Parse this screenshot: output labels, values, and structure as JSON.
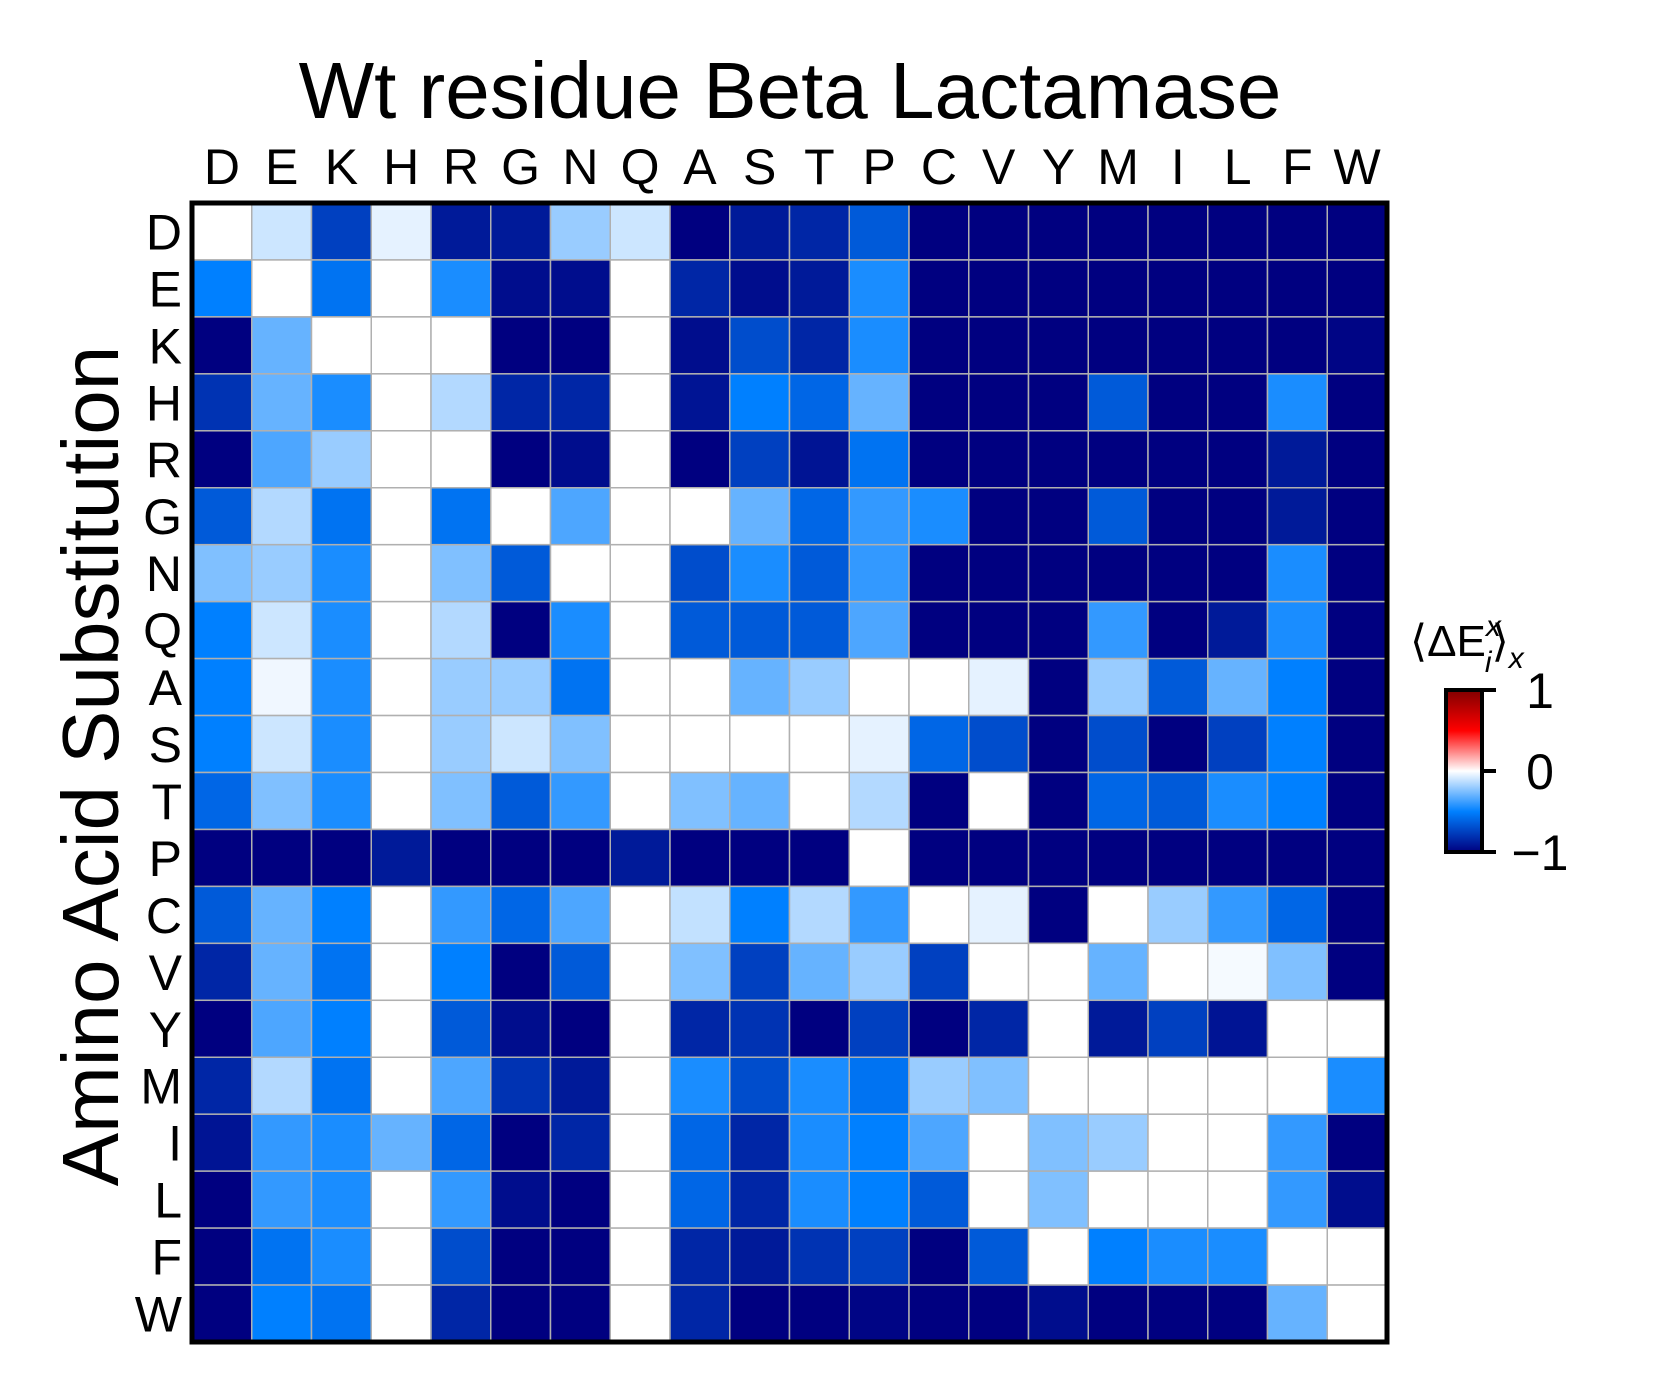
{
  "chart_data": {
    "type": "heatmap",
    "title": "Wt residue Beta Lactamase",
    "xlabel": "",
    "ylabel": "Amino Acid Substitution",
    "x_categories": [
      "D",
      "E",
      "K",
      "H",
      "R",
      "G",
      "N",
      "Q",
      "A",
      "S",
      "T",
      "P",
      "C",
      "V",
      "Y",
      "M",
      "I",
      "L",
      "F",
      "W"
    ],
    "y_categories": [
      "D",
      "E",
      "K",
      "H",
      "R",
      "G",
      "N",
      "Q",
      "A",
      "S",
      "T",
      "P",
      "C",
      "V",
      "Y",
      "M",
      "I",
      "L",
      "F",
      "W"
    ],
    "values": [
      [
        0,
        -0.1,
        -0.75,
        -0.05,
        -0.9,
        -0.9,
        -0.2,
        -0.1,
        -1.0,
        -0.9,
        -0.85,
        -0.65,
        -1,
        -1,
        -1,
        -1,
        -1,
        -1,
        -1,
        -1
      ],
      [
        -0.5,
        0,
        -0.55,
        0,
        -0.45,
        -0.95,
        -0.95,
        0,
        -0.85,
        -0.95,
        -0.9,
        -0.45,
        -1,
        -1,
        -1,
        -1,
        -1,
        -1,
        -1,
        -1
      ],
      [
        -1.0,
        -0.3,
        0,
        0,
        0,
        -1.0,
        -1.0,
        0,
        -0.95,
        -0.7,
        -0.85,
        -0.45,
        -1,
        -1,
        -1,
        -1,
        -1,
        -1,
        -1,
        -0.98
      ],
      [
        -0.8,
        -0.3,
        -0.45,
        0,
        -0.15,
        -0.85,
        -0.85,
        0,
        -0.92,
        -0.5,
        -0.6,
        -0.3,
        -1,
        -1,
        -1,
        -0.65,
        -1,
        -1,
        -0.45,
        -1
      ],
      [
        -1.0,
        -0.35,
        -0.2,
        0,
        0,
        -1.0,
        -0.95,
        0,
        -1.0,
        -0.75,
        -0.92,
        -0.55,
        -1,
        -1,
        -1,
        -1,
        -1,
        -1,
        -0.9,
        -1
      ],
      [
        -0.65,
        -0.15,
        -0.55,
        0,
        -0.55,
        0,
        -0.35,
        0,
        0,
        -0.3,
        -0.6,
        -0.4,
        -0.45,
        -1,
        -1,
        -0.65,
        -1,
        -1,
        -0.9,
        -1
      ],
      [
        -0.25,
        -0.2,
        -0.45,
        0,
        -0.25,
        -0.65,
        0,
        0,
        -0.7,
        -0.45,
        -0.65,
        -0.4,
        -1,
        -1,
        -1,
        -1,
        -1,
        -1,
        -0.45,
        -1
      ],
      [
        -0.5,
        -0.1,
        -0.45,
        0,
        -0.15,
        -1.0,
        -0.45,
        0,
        -0.65,
        -0.65,
        -0.65,
        -0.35,
        -1,
        -1,
        -1,
        -0.4,
        -1,
        -0.9,
        -0.45,
        -1
      ],
      [
        -0.5,
        -0.03,
        -0.45,
        0,
        -0.2,
        -0.2,
        -0.55,
        0,
        0,
        -0.3,
        -0.2,
        0,
        0,
        -0.05,
        -1,
        -0.2,
        -0.65,
        -0.3,
        -0.5,
        -1
      ],
      [
        -0.5,
        -0.1,
        -0.45,
        0,
        -0.2,
        -0.1,
        -0.25,
        0,
        0,
        0,
        0,
        -0.05,
        -0.6,
        -0.7,
        -1,
        -0.7,
        -1,
        -0.75,
        -0.5,
        -1
      ],
      [
        -0.6,
        -0.25,
        -0.45,
        0,
        -0.25,
        -0.65,
        -0.4,
        0,
        -0.25,
        -0.3,
        0,
        -0.15,
        -1.0,
        0,
        -1,
        -0.6,
        -0.65,
        -0.45,
        -0.5,
        -1
      ],
      [
        -1,
        -1,
        -1,
        -0.9,
        -1,
        -1,
        -1,
        -0.9,
        -1,
        -1,
        -1,
        0,
        -1,
        -1,
        -1,
        -1,
        -1,
        -1,
        -1,
        -1
      ],
      [
        -0.65,
        -0.3,
        -0.5,
        0,
        -0.4,
        -0.6,
        -0.35,
        0,
        -0.12,
        -0.5,
        -0.15,
        -0.4,
        0,
        -0.05,
        -1,
        0,
        -0.2,
        -0.4,
        -0.6,
        -1
      ],
      [
        -0.85,
        -0.3,
        -0.55,
        0,
        -0.5,
        -1.0,
        -0.65,
        0,
        -0.25,
        -0.75,
        -0.3,
        -0.2,
        -0.75,
        0,
        0,
        -0.3,
        0,
        -0.02,
        -0.25,
        -1
      ],
      [
        -1.0,
        -0.35,
        -0.5,
        0,
        -0.65,
        -0.95,
        -1.0,
        0,
        -0.85,
        -0.8,
        -1.0,
        -0.75,
        -1.0,
        -0.85,
        0,
        -0.9,
        -0.75,
        -0.92,
        0,
        0
      ],
      [
        -0.85,
        -0.15,
        -0.55,
        0,
        -0.35,
        -0.8,
        -0.9,
        0,
        -0.45,
        -0.7,
        -0.45,
        -0.55,
        -0.2,
        -0.25,
        0,
        0,
        0,
        0,
        0,
        -0.45
      ],
      [
        -0.92,
        -0.4,
        -0.45,
        -0.3,
        -0.6,
        -1.0,
        -0.85,
        0,
        -0.6,
        -0.85,
        -0.45,
        -0.5,
        -0.35,
        0,
        -0.25,
        -0.2,
        0,
        0,
        -0.4,
        -1.0
      ],
      [
        -1.0,
        -0.4,
        -0.45,
        0,
        -0.4,
        -0.95,
        -1.0,
        0,
        -0.6,
        -0.85,
        -0.45,
        -0.5,
        -0.65,
        0,
        -0.25,
        0,
        0,
        0,
        -0.4,
        -0.95
      ],
      [
        -1.0,
        -0.55,
        -0.45,
        0,
        -0.7,
        -1.0,
        -1.0,
        0,
        -0.85,
        -0.9,
        -0.8,
        -0.75,
        -1.0,
        -0.65,
        0,
        -0.5,
        -0.45,
        -0.45,
        0,
        0
      ],
      [
        -1.0,
        -0.5,
        -0.55,
        0,
        -0.85,
        -1.0,
        -1.0,
        0,
        -0.85,
        -1.0,
        -1.0,
        -0.98,
        -1.0,
        -1.0,
        -0.95,
        -1.0,
        -1.0,
        -1.0,
        -0.3,
        0
      ]
    ],
    "colorbar": {
      "label_main": "⟨ΔE",
      "label_sup": "x",
      "label_sub": "i",
      "label_close": "⟩",
      "label_close_sub": "x",
      "range": [
        -1,
        1
      ],
      "ticks": [
        1,
        0,
        -1
      ],
      "tick_labels": [
        "1",
        "0",
        "−1"
      ],
      "colors": [
        "#000080",
        "#0080ff",
        "#ffffff",
        "#ff0000",
        "#800000"
      ]
    },
    "grid": true
  }
}
